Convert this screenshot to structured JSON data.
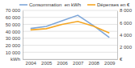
{
  "chart_data": {
    "type": "line",
    "categories": [
      "2004",
      "2005",
      "2006",
      "2007",
      "2008",
      "2009"
    ],
    "series": [
      {
        "name": "Consommation  en kWh",
        "color": "#7fa7d9",
        "values": [
          44000,
          47000,
          55000,
          63000,
          48000,
          31000
        ]
      },
      {
        "name": "Dépenses en €",
        "color": "#f5a623",
        "axis": "y2",
        "values": [
          4800,
          5000,
          5700,
          6200,
          5400,
          4300
        ]
      }
    ],
    "ylim": [
      0,
      70000
    ],
    "yticks": [
      {
        "value": 0,
        "label": "kWh"
      },
      {
        "value": 10000,
        "label": "10 000"
      },
      {
        "value": 20000,
        "label": "20 000"
      },
      {
        "value": 30000,
        "label": "30 000"
      },
      {
        "value": 40000,
        "label": "40 000"
      },
      {
        "value": 50000,
        "label": "50 000"
      },
      {
        "value": 60000,
        "label": "60 000"
      },
      {
        "value": 70000,
        "label": "70 000"
      }
    ],
    "y2lim": [
      0,
      8000
    ],
    "y2ticks": [
      {
        "value": 0,
        "label": "€"
      },
      {
        "value": 2000,
        "label": "2 000"
      },
      {
        "value": 4000,
        "label": "4 000"
      },
      {
        "value": 6000,
        "label": "6 000"
      },
      {
        "value": 8000,
        "label": "8 000"
      }
    ],
    "grid": true,
    "legend": "top"
  }
}
